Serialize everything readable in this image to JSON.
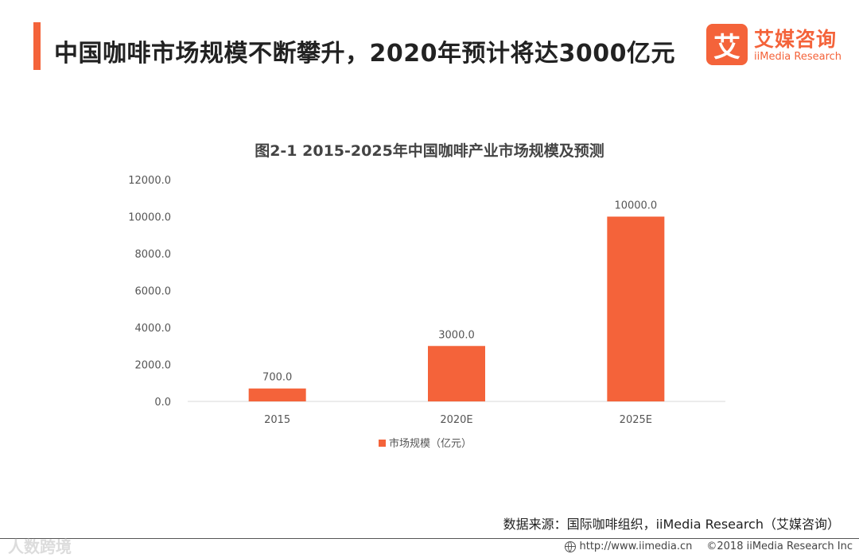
{
  "header": {
    "headline": "中国咖啡市场规模不断攀升，2020年预计将达3000亿元"
  },
  "brand": {
    "badge_char": "艾",
    "name_cn": "艾媒咨询",
    "name_en": "iiMedia Research"
  },
  "colors": {
    "accent": "#f4633a",
    "bar": "#f4633a",
    "axis": "#d9d9d9",
    "text": "#555555"
  },
  "chart_data": {
    "type": "bar",
    "title": "图2-1 2015-2025年中国咖啡产业市场规模及预测",
    "categories": [
      "2015",
      "2020E",
      "2025E"
    ],
    "series": [
      {
        "name": "市场规模（亿元）",
        "values": [
          700.0,
          3000.0,
          10000.0
        ]
      }
    ],
    "data_labels": [
      "700.0",
      "3000.0",
      "10000.0"
    ],
    "ylim": [
      0,
      12000
    ],
    "yticks": [
      0,
      2000,
      4000,
      6000,
      8000,
      10000,
      12000
    ],
    "ytick_labels": [
      "0.0",
      "2000.0",
      "4000.0",
      "6000.0",
      "8000.0",
      "10000.0",
      "12000.0"
    ],
    "xlabel": "",
    "ylabel": "",
    "grid": false,
    "legend_position": "bottom-center"
  },
  "footer": {
    "source": "数据来源：国际咖啡组织，iiMedia Research（艾媒咨询）",
    "url": "http://www.iimedia.cn",
    "copyright": "©2018  iiMedia Research  Inc",
    "watermark": "人数跨境"
  }
}
